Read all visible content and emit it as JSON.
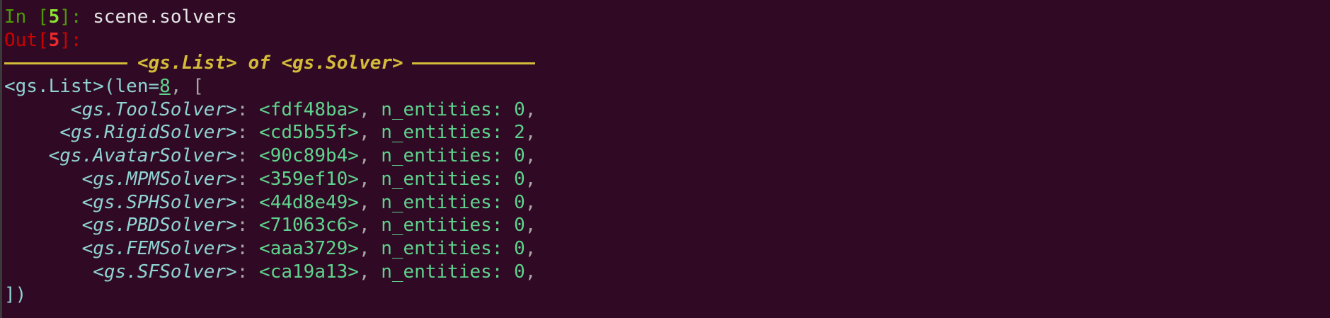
{
  "input": {
    "prompt": "In ",
    "number": "5",
    "code": "scene.solvers"
  },
  "output": {
    "prompt": "Out",
    "number": "5"
  },
  "header_title": "<gs.List> of <gs.Solver>",
  "list": {
    "open_prefix": "<gs.List>(len=",
    "length": "8",
    "open_suffix": ", [",
    "close": "])",
    "field_label": "n_entities",
    "items": [
      {
        "name": "<gs.ToolSolver>",
        "id": "<fdf48ba>",
        "n_entities": "0"
      },
      {
        "name": "<gs.RigidSolver>",
        "id": "<cd5b55f>",
        "n_entities": "2"
      },
      {
        "name": "<gs.AvatarSolver>",
        "id": "<90c89b4>",
        "n_entities": "0"
      },
      {
        "name": "<gs.MPMSolver>",
        "id": "<359ef10>",
        "n_entities": "0"
      },
      {
        "name": "<gs.SPHSolver>",
        "id": "<44d8e49>",
        "n_entities": "0"
      },
      {
        "name": "<gs.PBDSolver>",
        "id": "<71063c6>",
        "n_entities": "0"
      },
      {
        "name": "<gs.FEMSolver>",
        "id": "<aaa3729>",
        "n_entities": "0"
      },
      {
        "name": "<gs.SFSolver>",
        "id": "<ca19a13>",
        "n_entities": "0"
      }
    ]
  },
  "colors": {
    "background": "#300a24",
    "header": "#d4bb3a",
    "key": "#8fd3d3",
    "value": "#5fd38d",
    "in_prompt": "#4e9a06",
    "out_prompt": "#cc0000"
  }
}
